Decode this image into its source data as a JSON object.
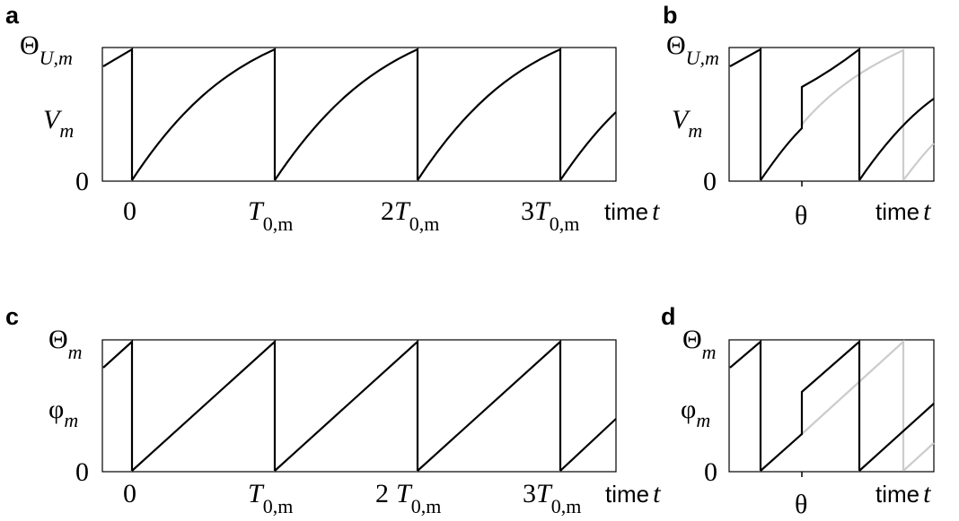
{
  "figure": {
    "panels": [
      {
        "letter": "a",
        "top_label": "Θ",
        "top_sub": "U,m",
        "mid_label": "V",
        "mid_sub": "m",
        "zero_label": "0",
        "xticks": [
          {
            "pre": "",
            "main": "0",
            "sub": ""
          },
          {
            "pre": "",
            "main": "T",
            "sub": "0,m"
          },
          {
            "pre": "2",
            "main": "T",
            "sub": "0,m"
          },
          {
            "pre": "3",
            "main": "T",
            "sub": "0,m"
          }
        ],
        "time_word": "time",
        "time_var": "t"
      },
      {
        "letter": "b",
        "top_label": "Θ",
        "top_sub": "U,m",
        "mid_label": "V",
        "mid_sub": "m",
        "zero_label": "0",
        "theta_label": "θ",
        "time_word": "time",
        "time_var": "t"
      },
      {
        "letter": "c",
        "top_label": "Θ",
        "top_sub": "m",
        "mid_label": "φ",
        "mid_sub": "m",
        "zero_label": "0",
        "xticks": [
          {
            "pre": "",
            "main": "0",
            "sub": ""
          },
          {
            "pre": "",
            "main": "T",
            "sub": "0,m"
          },
          {
            "pre": "2",
            "main": "T",
            "sub": "0,m"
          },
          {
            "pre": "3",
            "main": "T",
            "sub": "0,m"
          }
        ],
        "time_word": "time",
        "time_var": "t"
      },
      {
        "letter": "d",
        "top_label": "Θ",
        "top_sub": "m",
        "mid_label": "φ",
        "mid_sub": "m",
        "zero_label": "0",
        "theta_label": "θ",
        "time_word": "time",
        "time_var": "t"
      }
    ]
  },
  "chart_data": [
    {
      "panel": "a",
      "type": "line",
      "ylim": [
        0,
        1
      ],
      "xlim": [
        -0.2,
        3.4
      ],
      "period": 1,
      "series": [
        {
          "values_desc": "concave rise from 0 to threshold, reset at each period",
          "color": "#000000"
        }
      ]
    },
    {
      "panel": "b",
      "type": "line",
      "ylim": [
        0,
        1
      ],
      "series": [
        {
          "color": "#000000"
        },
        {
          "color": "#cccccc"
        }
      ]
    },
    {
      "panel": "c",
      "type": "line",
      "ylim": [
        0,
        1
      ],
      "xlim": [
        -0.2,
        3.4
      ],
      "period": 1,
      "series": [
        {
          "color": "#000000"
        }
      ]
    },
    {
      "panel": "d",
      "type": "line",
      "ylim": [
        0,
        1
      ],
      "series": [
        {
          "color": "#000000"
        },
        {
          "color": "#cccccc"
        }
      ]
    }
  ]
}
